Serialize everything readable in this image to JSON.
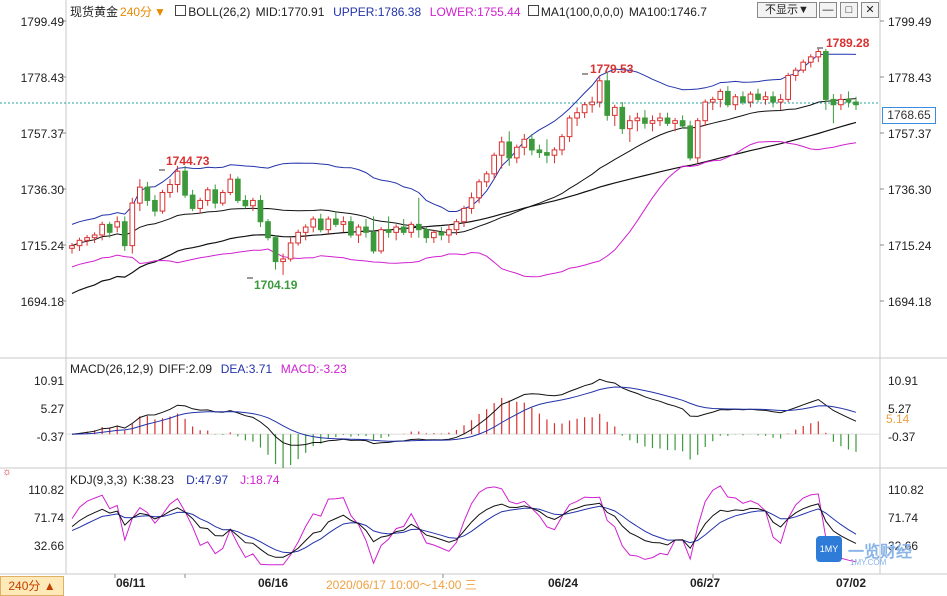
{
  "header": {
    "main": {
      "symbol": "现货黄金",
      "period_tag": "240分",
      "boll_label": "BOLL(26,2)",
      "boll_mid": "MID:1770.91",
      "boll_upper": "UPPER:1786.38",
      "boll_lower": "LOWER:1755.44",
      "ma_label": "MA1(100,0,0,0)",
      "ma100": "MA100:1746.7"
    },
    "macd": {
      "label": "MACD(26,12,9)",
      "diff": "DIFF:2.09",
      "dea": "DEA:3.71",
      "macd": "MACD:-3.23"
    },
    "kdj": {
      "label": "KDJ(9,3,3)",
      "k": "K:38.23",
      "d": "D:47.97",
      "j": "J:18.74"
    }
  },
  "controls": {
    "hide_label": "不显示▼",
    "min_label": "—",
    "restore_label": "□",
    "close_label": "✕"
  },
  "colors": {
    "up": "#d93030",
    "down": "#3c9a3c",
    "boll": "#2233aa",
    "lower": "#d020d0",
    "ma": "#111111",
    "dea": "#2233aa",
    "kdj_j": "#d020d0",
    "dashed": "#20a0a0"
  },
  "price_axis": {
    "ticks": [
      "1799.49",
      "1778.43",
      "1757.37",
      "1736.30",
      "1715.24",
      "1694.18"
    ],
    "current_flag": "1768.65"
  },
  "macd_axis": {
    "ticks": [
      "10.91",
      "5.27",
      "-0.37"
    ],
    "right_flag": "5.14"
  },
  "kdj_axis": {
    "ticks": [
      "110.82",
      "71.74",
      "32.66"
    ]
  },
  "annotations": {
    "high_1": "1744.73",
    "low_1": "1704.19",
    "high_2": "1779.53",
    "high_3": "1789.28"
  },
  "x_axis": {
    "labels": [
      "06/11",
      "06/16",
      "06/24",
      "06/27",
      "07/02"
    ],
    "crosshair_time": "2020/06/17 10:00～14:00 三",
    "period_button": "240分 ▲"
  },
  "watermark": {
    "logo": "1MY",
    "text": "一览财经",
    "sub": "1MY.COM"
  },
  "chart_data": {
    "type": "candlestick",
    "price_range": [
      1683.65,
      1804.0
    ],
    "candles": [
      [
        1714,
        1716,
        1712,
        1715
      ],
      [
        1715,
        1718,
        1713,
        1717
      ],
      [
        1717,
        1719,
        1715,
        1718
      ],
      [
        1718,
        1720,
        1716,
        1719
      ],
      [
        1719,
        1724,
        1717,
        1723
      ],
      [
        1723,
        1724,
        1718,
        1720
      ],
      [
        1722,
        1726,
        1720,
        1724
      ],
      [
        1724,
        1726,
        1713,
        1715
      ],
      [
        1715,
        1733,
        1712,
        1731
      ],
      [
        1731,
        1740,
        1728,
        1737
      ],
      [
        1737,
        1739,
        1730,
        1732
      ],
      [
        1732,
        1734,
        1726,
        1728
      ],
      [
        1728,
        1736,
        1727,
        1735
      ],
      [
        1735,
        1740,
        1733,
        1738
      ],
      [
        1738,
        1745,
        1735,
        1743
      ],
      [
        1743,
        1745,
        1733,
        1734
      ],
      [
        1734,
        1736,
        1728,
        1729
      ],
      [
        1729,
        1733,
        1727,
        1732
      ],
      [
        1732,
        1737,
        1730,
        1736
      ],
      [
        1736,
        1738,
        1729,
        1731
      ],
      [
        1731,
        1736,
        1730,
        1735
      ],
      [
        1735,
        1742,
        1734,
        1740
      ],
      [
        1740,
        1741,
        1731,
        1732
      ],
      [
        1732,
        1734,
        1729,
        1730
      ],
      [
        1730,
        1733,
        1728,
        1732
      ],
      [
        1732,
        1734,
        1722,
        1724
      ],
      [
        1724,
        1725,
        1717,
        1718
      ],
      [
        1718,
        1719,
        1706,
        1709
      ],
      [
        1709,
        1712,
        1704,
        1710
      ],
      [
        1710,
        1718,
        1709,
        1716
      ],
      [
        1716,
        1721,
        1715,
        1720
      ],
      [
        1720,
        1723,
        1717,
        1722
      ],
      [
        1722,
        1726,
        1720,
        1725
      ],
      [
        1725,
        1727,
        1720,
        1721
      ],
      [
        1721,
        1726,
        1719,
        1725
      ],
      [
        1725,
        1728,
        1722,
        1723
      ],
      [
        1723,
        1726,
        1720,
        1724
      ],
      [
        1724,
        1726,
        1718,
        1719
      ],
      [
        1719,
        1723,
        1716,
        1722
      ],
      [
        1722,
        1725,
        1718,
        1720
      ],
      [
        1720,
        1726,
        1712,
        1713
      ],
      [
        1713,
        1722,
        1712,
        1721
      ],
      [
        1721,
        1726,
        1718,
        1720
      ],
      [
        1720,
        1723,
        1717,
        1722
      ],
      [
        1722,
        1725,
        1719,
        1720
      ],
      [
        1720,
        1724,
        1718,
        1723
      ],
      [
        1723,
        1733,
        1718,
        1721
      ],
      [
        1721,
        1722,
        1716,
        1718
      ],
      [
        1718,
        1721,
        1716,
        1720
      ],
      [
        1720,
        1722,
        1717,
        1719
      ],
      [
        1719,
        1723,
        1716,
        1721
      ],
      [
        1721,
        1725,
        1719,
        1724
      ],
      [
        1724,
        1730,
        1722,
        1729
      ],
      [
        1729,
        1735,
        1727,
        1733
      ],
      [
        1733,
        1740,
        1731,
        1739
      ],
      [
        1739,
        1743,
        1737,
        1742
      ],
      [
        1742,
        1750,
        1740,
        1749
      ],
      [
        1749,
        1756,
        1744,
        1754
      ],
      [
        1754,
        1758,
        1745,
        1748
      ],
      [
        1748,
        1753,
        1746,
        1752
      ],
      [
        1752,
        1757,
        1749,
        1755
      ],
      [
        1755,
        1757,
        1749,
        1751
      ],
      [
        1751,
        1753,
        1748,
        1750
      ],
      [
        1750,
        1755,
        1746,
        1749
      ],
      [
        1749,
        1752,
        1746,
        1751
      ],
      [
        1751,
        1757,
        1749,
        1756
      ],
      [
        1756,
        1764,
        1754,
        1763
      ],
      [
        1763,
        1767,
        1760,
        1765
      ],
      [
        1765,
        1769,
        1763,
        1768
      ],
      [
        1768,
        1771,
        1765,
        1769
      ],
      [
        1769,
        1779,
        1767,
        1777
      ],
      [
        1777,
        1780,
        1762,
        1764
      ],
      [
        1764,
        1768,
        1760,
        1767
      ],
      [
        1767,
        1769,
        1757,
        1759
      ],
      [
        1759,
        1764,
        1754,
        1762
      ],
      [
        1762,
        1765,
        1758,
        1763
      ],
      [
        1763,
        1766,
        1759,
        1761
      ],
      [
        1761,
        1764,
        1758,
        1762
      ],
      [
        1762,
        1765,
        1760,
        1763
      ],
      [
        1763,
        1765,
        1760,
        1761
      ],
      [
        1761,
        1763,
        1758,
        1762
      ],
      [
        1762,
        1764,
        1759,
        1760
      ],
      [
        1760,
        1762,
        1747,
        1748
      ],
      [
        1748,
        1763,
        1746,
        1762
      ],
      [
        1762,
        1770,
        1760,
        1769
      ],
      [
        1769,
        1771,
        1766,
        1770
      ],
      [
        1770,
        1774,
        1767,
        1773
      ],
      [
        1773,
        1775,
        1767,
        1768
      ],
      [
        1768,
        1772,
        1766,
        1771
      ],
      [
        1771,
        1773,
        1768,
        1769
      ],
      [
        1769,
        1773,
        1767,
        1772
      ],
      [
        1772,
        1774,
        1769,
        1770
      ],
      [
        1770,
        1773,
        1768,
        1771
      ],
      [
        1771,
        1773,
        1767,
        1769
      ],
      [
        1769,
        1772,
        1766,
        1770
      ],
      [
        1770,
        1780,
        1769,
        1779
      ],
      [
        1779,
        1782,
        1777,
        1781
      ],
      [
        1781,
        1785,
        1780,
        1784
      ],
      [
        1784,
        1787,
        1782,
        1786
      ],
      [
        1786,
        1789,
        1784,
        1788
      ],
      [
        1788,
        1789,
        1766,
        1770
      ],
      [
        1770,
        1772,
        1761,
        1768
      ],
      [
        1768,
        1772,
        1766,
        1770
      ],
      [
        1770,
        1773,
        1767,
        1769
      ],
      [
        1769,
        1771,
        1766,
        1768
      ]
    ],
    "macd_range": [
      -5.8,
      13.5
    ],
    "kdj_range": [
      5,
      125
    ]
  }
}
